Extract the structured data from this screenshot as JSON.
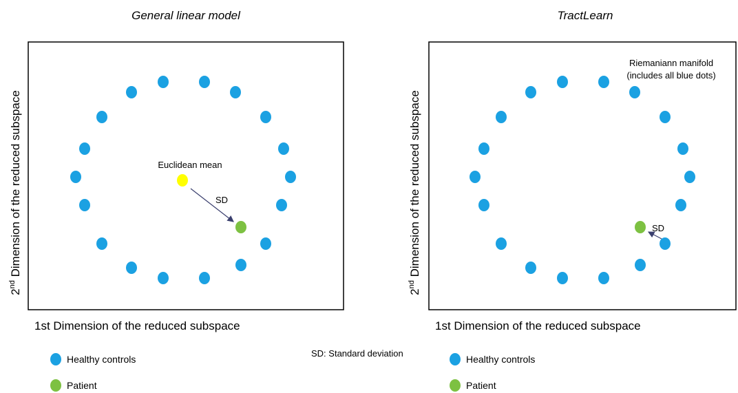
{
  "panels": [
    {
      "title": "General linear model",
      "y_label": {
        "ordinal": "2",
        "suffix": "nd",
        "text": " Dimension of the reduced subspace"
      },
      "x_label": "1st Dimension of the reduced subspace",
      "annotations": {
        "mean": "Euclidean mean",
        "sd": "SD"
      },
      "legend": [
        "Healthy controls",
        "Patient"
      ]
    },
    {
      "title": "TractLearn",
      "y_label": {
        "ordinal": "2",
        "suffix": "nd",
        "text": " Dimension of the reduced subspace"
      },
      "x_label": "1st Dimension of the reduced subspace",
      "annotations": {
        "manifold": [
          "Riemaniann manifold",
          "(includes all blue dots)"
        ],
        "sd": "SD"
      },
      "legend": [
        "Healthy controls",
        "Patient"
      ]
    }
  ],
  "footnote": "SD: Standard deviation"
}
